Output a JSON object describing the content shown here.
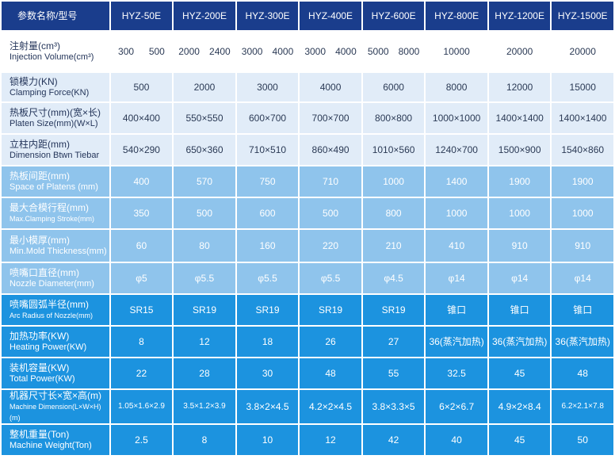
{
  "header": {
    "param": "参数名称/型号",
    "models": [
      "HYZ-50E",
      "HYZ-200E",
      "HYZ-300E",
      "HYZ-400E",
      "HYZ-600E",
      "HYZ-800E",
      "HYZ-1200E",
      "HYZ-1500E"
    ]
  },
  "rows": [
    {
      "cn": "注射量(cm³)",
      "en": "Injection Volume(cm³)",
      "split": true,
      "values": [
        [
          "300",
          "500"
        ],
        [
          "2000",
          "2400"
        ],
        [
          "3000",
          "4000"
        ],
        [
          "3000",
          "4000"
        ],
        [
          "5000",
          "8000"
        ],
        [
          "10000"
        ],
        [
          "20000"
        ],
        [
          "20000"
        ]
      ]
    },
    {
      "cn": "锁模力(KN)",
      "en": "Clamping Force(KN)",
      "values": [
        "500",
        "2000",
        "3000",
        "4000",
        "6000",
        "8000",
        "12000",
        "15000"
      ]
    },
    {
      "cn": "热板尺寸(mm)(宽×长)",
      "en": "Platen Size(mm)(W×L)",
      "values": [
        "400×400",
        "550×550",
        "600×700",
        "700×700",
        "800×800",
        "1000×1000",
        "1400×1400",
        "1400×1400"
      ]
    },
    {
      "cn": "立柱内距(mm)",
      "en": "Dimension Btwn Tiebar",
      "values": [
        "540×290",
        "650×360",
        "710×510",
        "860×490",
        "1010×560",
        "1240×700",
        "1500×900",
        "1540×860"
      ]
    },
    {
      "cn": "热板间距(mm)",
      "en": "Space of Platens (mm)",
      "values": [
        "400",
        "570",
        "750",
        "710",
        "1000",
        "1400",
        "1900",
        "1900"
      ]
    },
    {
      "cn": "最大合模行程(mm)",
      "en": "Max.Clamping Stroke(mm)",
      "values": [
        "350",
        "500",
        "600",
        "500",
        "800",
        "1000",
        "1000",
        "1000"
      ]
    },
    {
      "cn": "最小模厚(mm)",
      "en": "Min.Mold Thickness(mm)",
      "values": [
        "60",
        "80",
        "160",
        "220",
        "210",
        "410",
        "910",
        "910"
      ]
    },
    {
      "cn": "喷嘴口直径(mm)",
      "en": "Nozzle Diameter(mm)",
      "values": [
        "φ5",
        "φ5.5",
        "φ5.5",
        "φ5.5",
        "φ4.5",
        "φ14",
        "φ14",
        "φ14"
      ]
    },
    {
      "cn": "喷嘴圆弧半径(mm)",
      "en": "Arc Radius of Nozzle(mm)",
      "values": [
        "SR15",
        "SR19",
        "SR19",
        "SR19",
        "SR19",
        "锥口",
        "锥口",
        "锥口"
      ]
    },
    {
      "cn": "加热功率(KW)",
      "en": "Heating Power(KW)",
      "values": [
        "8",
        "12",
        "18",
        "26",
        "27",
        "36(蒸汽加热)",
        "36(蒸汽加热)",
        "36(蒸汽加热)"
      ]
    },
    {
      "cn": "装机容量(KW)",
      "en": "Total Power(KW)",
      "values": [
        "22",
        "28",
        "30",
        "48",
        "55",
        "32.5",
        "45",
        "48"
      ]
    },
    {
      "cn": "机器尺寸长×宽×高(m)",
      "en": "Machine Dimension(L×W×H)(m)",
      "values": [
        "1.05×1.6×2.9",
        "3.5×1.2×3.9",
        "3.8×2×4.5",
        "4.2×2×4.5",
        "3.8×3.3×5",
        "6×2×6.7",
        "4.9×2×8.4",
        "6.2×2.1×7.8"
      ]
    },
    {
      "cn": "整机重量(Ton)",
      "en": "Machine Weight(Ton)",
      "values": [
        "2.5",
        "8",
        "10",
        "12",
        "42",
        "40",
        "45",
        "50"
      ]
    }
  ]
}
